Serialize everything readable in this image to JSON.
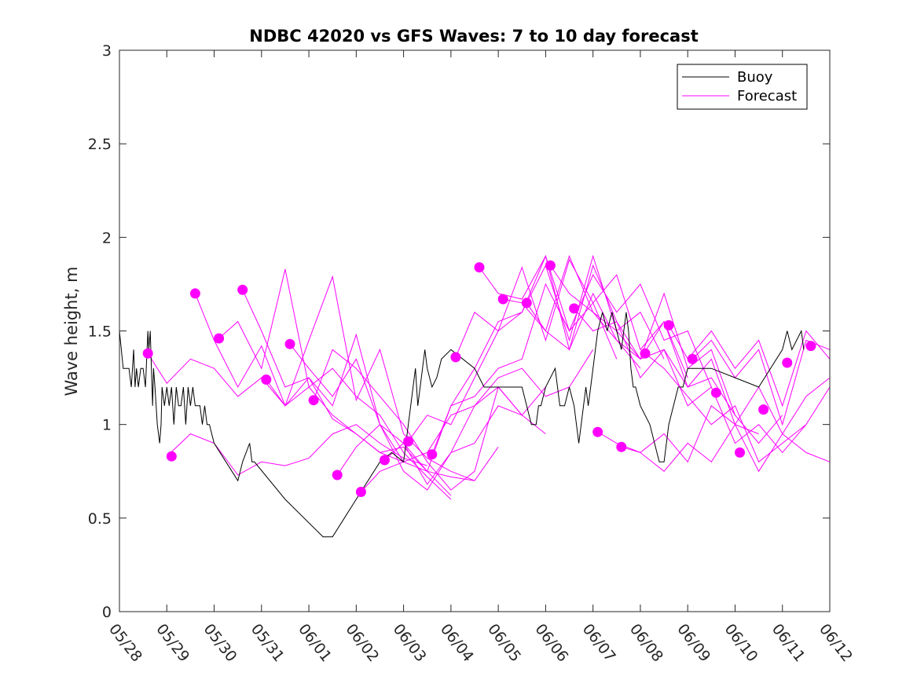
{
  "chart_data": {
    "type": "line",
    "title": "NDBC 42020 vs GFS Waves: 7 to 10 day forecast",
    "xlabel": "",
    "ylabel": "Wave height, m",
    "x_ticks": [
      "05/28",
      "05/29",
      "05/30",
      "05/31",
      "06/01",
      "06/02",
      "06/03",
      "06/04",
      "06/05",
      "06/06",
      "06/07",
      "06/08",
      "06/09",
      "06/10",
      "06/11",
      "06/12"
    ],
    "y_ticks": [
      "0",
      "0.5",
      "1",
      "1.5",
      "2",
      "2.5",
      "3"
    ],
    "xlim": [
      0,
      15
    ],
    "ylim": [
      0,
      3
    ],
    "grid": false,
    "legend_position": "top-right",
    "colors": {
      "buoy": "#000000",
      "forecast": "#ff00ff"
    },
    "buoy": {
      "name": "Buoy",
      "x": [
        0.0,
        0.08,
        0.2,
        0.25,
        0.3,
        0.33,
        0.36,
        0.4,
        0.45,
        0.5,
        0.55,
        0.6,
        0.62,
        0.65,
        0.7,
        0.72,
        0.75,
        0.8,
        0.85,
        0.88,
        0.9,
        0.95,
        1.0,
        1.05,
        1.1,
        1.15,
        1.2,
        1.25,
        1.3,
        1.35,
        1.4,
        1.45,
        1.5,
        1.55,
        1.6,
        1.65,
        1.7,
        1.75,
        1.8,
        1.85,
        1.9,
        2.0,
        2.5,
        2.6,
        2.75,
        2.8,
        2.85,
        3.5,
        4.3,
        4.5,
        5.0,
        5.5,
        5.75,
        6.0,
        6.25,
        6.3,
        6.4,
        6.45,
        6.5,
        6.6,
        6.7,
        6.75,
        6.8,
        7.0,
        7.5,
        7.7,
        8.0,
        8.5,
        8.7,
        8.8,
        8.85,
        8.9,
        9.0,
        9.2,
        9.3,
        9.4,
        9.5,
        9.6,
        9.65,
        9.7,
        9.75,
        9.8,
        9.85,
        9.9,
        9.95,
        10.0,
        10.05,
        10.1,
        10.2,
        10.3,
        10.4,
        10.5,
        10.6,
        10.7,
        10.75,
        10.8,
        10.85,
        10.9,
        11.0,
        11.2,
        11.3,
        11.4,
        11.5,
        11.6,
        11.7,
        11.8,
        11.9,
        12.0,
        12.5,
        13.0,
        13.5,
        14.0,
        14.1,
        14.2,
        14.3,
        14.4,
        14.45
      ],
      "y": [
        1.5,
        1.3,
        1.3,
        1.2,
        1.4,
        1.2,
        1.3,
        1.2,
        1.3,
        1.3,
        1.2,
        1.5,
        1.4,
        1.5,
        1.1,
        1.3,
        1.2,
        1.0,
        0.9,
        1.0,
        1.2,
        1.1,
        1.2,
        1.1,
        1.2,
        1.0,
        1.2,
        1.1,
        1.1,
        1.2,
        1.0,
        1.2,
        1.1,
        1.2,
        1.1,
        1.1,
        1.1,
        1.0,
        1.1,
        1.0,
        1.0,
        0.9,
        0.7,
        0.8,
        0.9,
        0.8,
        0.8,
        0.6,
        0.4,
        0.4,
        0.6,
        0.8,
        0.85,
        0.8,
        1.3,
        1.1,
        1.3,
        1.4,
        1.3,
        1.2,
        1.25,
        1.3,
        1.35,
        1.4,
        1.3,
        1.2,
        1.2,
        1.2,
        1.0,
        1.0,
        1.1,
        1.1,
        1.2,
        1.3,
        1.1,
        1.1,
        1.2,
        1.1,
        1.0,
        0.9,
        1.0,
        1.1,
        1.2,
        1.1,
        1.2,
        1.3,
        1.4,
        1.5,
        1.6,
        1.5,
        1.6,
        1.5,
        1.4,
        1.6,
        1.5,
        1.3,
        1.2,
        1.2,
        1.1,
        1.0,
        0.9,
        0.8,
        0.8,
        1.0,
        1.1,
        1.2,
        1.2,
        1.3,
        1.3,
        1.25,
        1.2,
        1.4,
        1.5,
        1.4,
        1.45,
        1.5,
        1.4
      ]
    },
    "forecast": {
      "name": "Forecast",
      "lines": [
        {
          "x": [
            0.6,
            1.0,
            1.5,
            2.0,
            2.5,
            3.0,
            3.5,
            4.0,
            4.5,
            5.0,
            5.5,
            6.0
          ],
          "y": [
            1.38,
            1.22,
            1.35,
            1.3,
            1.15,
            1.25,
            1.1,
            1.2,
            1.05,
            0.95,
            0.85,
            0.8
          ]
        },
        {
          "x": [
            1.0,
            1.5,
            2.0,
            2.5,
            3.0,
            3.5,
            4.0,
            4.5,
            5.0,
            5.5,
            6.0,
            6.5
          ],
          "y": [
            0.83,
            0.95,
            0.9,
            0.73,
            0.8,
            0.78,
            0.82,
            0.95,
            1.0,
            0.9,
            0.82,
            0.78
          ]
        },
        {
          "x": [
            1.6,
            2.0,
            2.5,
            3.0,
            3.5,
            4.0,
            4.5,
            5.0,
            5.5,
            6.0,
            6.5,
            7.0
          ],
          "y": [
            1.7,
            1.45,
            1.2,
            1.42,
            1.1,
            1.25,
            1.03,
            0.95,
            0.85,
            0.88,
            0.75,
            0.62
          ]
        },
        {
          "x": [
            2.1,
            2.5,
            3.0,
            3.5,
            4.0,
            4.5,
            5.0,
            5.5,
            6.0,
            6.5,
            7.0
          ],
          "y": [
            1.46,
            1.55,
            1.3,
            1.83,
            1.2,
            1.3,
            1.15,
            1.05,
            0.85,
            0.72,
            0.6
          ]
        },
        {
          "x": [
            2.6,
            3.0,
            3.5,
            4.0,
            4.5,
            5.0,
            5.5,
            6.0,
            6.5,
            7.0,
            7.5
          ],
          "y": [
            1.72,
            1.5,
            1.2,
            1.25,
            1.1,
            1.48,
            1.0,
            0.8,
            0.75,
            0.72,
            0.7
          ]
        },
        {
          "x": [
            3.1,
            3.5,
            4.0,
            4.5,
            5.0,
            5.5,
            6.0,
            6.5,
            7.0,
            7.5,
            8.0
          ],
          "y": [
            1.24,
            1.1,
            1.45,
            1.79,
            1.13,
            1.4,
            0.95,
            0.82,
            0.75,
            0.7,
            0.88
          ]
        },
        {
          "x": [
            3.6,
            4.0,
            4.5,
            5.0,
            5.5,
            6.0,
            6.5,
            7.0,
            7.5,
            8.0,
            8.5
          ],
          "y": [
            1.43,
            1.3,
            1.15,
            1.35,
            1.0,
            0.75,
            0.65,
            0.85,
            0.9,
            1.1,
            1.05
          ]
        },
        {
          "x": [
            4.1,
            4.5,
            5.0,
            5.5,
            6.0,
            6.5,
            7.0,
            7.5,
            8.0,
            8.5,
            9.0
          ],
          "y": [
            1.13,
            1.4,
            1.3,
            1.15,
            1.0,
            0.8,
            0.65,
            0.75,
            1.2,
            1.05,
            0.95
          ]
        },
        {
          "x": [
            4.6,
            5.0,
            5.5,
            6.0,
            6.5,
            7.0,
            7.5,
            8.0,
            8.5,
            9.0
          ],
          "y": [
            0.73,
            0.88,
            1.0,
            0.9,
            0.68,
            0.85,
            1.1,
            1.2,
            1.05,
            1.2
          ]
        },
        {
          "x": [
            5.1,
            5.5,
            6.0,
            6.5,
            7.0,
            7.5,
            8.0,
            8.5,
            9.0,
            9.5,
            10.0
          ],
          "y": [
            0.64,
            0.75,
            0.8,
            0.85,
            1.05,
            1.1,
            1.25,
            1.3,
            1.15,
            1.2,
            1.4
          ]
        },
        {
          "x": [
            5.6,
            6.0,
            6.5,
            7.0,
            7.5,
            8.0,
            8.5,
            9.0,
            9.5,
            10.0,
            10.5
          ],
          "y": [
            0.81,
            0.9,
            0.75,
            1.1,
            1.15,
            1.3,
            1.35,
            1.75,
            1.5,
            1.65,
            1.35
          ]
        },
        {
          "x": [
            6.1,
            6.5,
            7.0,
            7.5,
            8.0,
            8.5,
            9.0,
            9.5,
            10.0,
            10.5,
            11.0
          ],
          "y": [
            0.91,
            1.05,
            1.0,
            1.25,
            1.5,
            1.6,
            1.9,
            1.4,
            1.7,
            1.45,
            1.3
          ]
        },
        {
          "x": [
            6.6,
            7.0,
            7.5,
            8.0,
            8.5,
            9.0,
            9.5,
            10.0,
            10.5,
            11.0,
            11.5
          ],
          "y": [
            0.84,
            1.1,
            1.3,
            1.55,
            1.6,
            1.85,
            1.45,
            1.9,
            1.5,
            1.6,
            1.35
          ]
        },
        {
          "x": [
            7.1,
            7.5,
            8.0,
            8.5,
            9.0,
            9.5,
            10.0,
            10.5,
            11.0,
            11.5,
            12.0
          ],
          "y": [
            1.36,
            1.6,
            1.5,
            1.84,
            1.45,
            1.88,
            1.65,
            1.8,
            1.4,
            1.55,
            1.25
          ]
        },
        {
          "x": [
            7.6,
            8.0,
            8.5,
            9.0,
            9.5,
            10.0,
            10.5,
            11.0,
            11.5,
            12.0,
            12.5
          ],
          "y": [
            1.84,
            1.7,
            1.67,
            1.9,
            1.5,
            1.8,
            1.6,
            1.75,
            1.45,
            1.5,
            1.2
          ]
        },
        {
          "x": [
            8.1,
            8.5,
            9.0,
            9.5,
            10.0,
            10.5,
            11.0,
            11.5,
            12.0,
            12.5,
            13.0
          ],
          "y": [
            1.67,
            1.65,
            1.5,
            1.9,
            1.6,
            1.5,
            1.35,
            1.7,
            1.3,
            1.4,
            1.05
          ]
        },
        {
          "x": [
            8.6,
            9.0,
            9.5,
            10.0,
            10.5,
            11.0,
            11.5,
            12.0,
            12.5,
            13.0,
            13.5
          ],
          "y": [
            1.65,
            1.5,
            1.4,
            1.85,
            1.55,
            1.35,
            1.4,
            1.2,
            1.35,
            1.0,
            0.95
          ]
        },
        {
          "x": [
            9.1,
            9.5,
            10.0,
            10.5,
            11.0,
            11.5,
            12.0,
            12.5,
            13.0,
            13.5,
            14.0
          ],
          "y": [
            1.85,
            1.7,
            1.6,
            1.45,
            1.35,
            1.55,
            1.2,
            1.25,
            1.05,
            0.9,
            1.05
          ]
        },
        {
          "x": [
            9.6,
            10.0,
            10.5,
            11.0,
            11.5,
            12.0,
            12.5,
            13.0,
            13.5,
            14.0,
            14.5
          ],
          "y": [
            1.62,
            1.5,
            1.55,
            1.25,
            1.4,
            1.1,
            1.2,
            0.9,
            1.0,
            0.85,
            1.0
          ]
        },
        {
          "x": [
            10.1,
            10.5,
            11.0,
            11.5,
            12.0,
            12.5,
            13.0,
            13.5,
            14.0,
            14.5,
            15.0
          ],
          "y": [
            0.96,
            0.9,
            0.85,
            0.95,
            0.8,
            1.1,
            1.0,
            1.2,
            0.95,
            1.15,
            1.25
          ]
        },
        {
          "x": [
            10.6,
            11.0,
            11.5,
            12.0,
            12.5,
            13.0,
            13.5,
            14.0,
            14.5,
            15.0
          ],
          "y": [
            0.88,
            0.85,
            0.75,
            0.9,
            0.8,
            1.0,
            0.75,
            0.95,
            0.85,
            0.8
          ]
        },
        {
          "x": [
            11.1,
            11.5,
            12.0,
            12.5,
            13.0,
            13.5,
            14.0,
            14.5,
            15.0
          ],
          "y": [
            1.38,
            1.3,
            1.15,
            1.0,
            1.1,
            0.8,
            0.9,
            1.0,
            1.2
          ]
        },
        {
          "x": [
            11.6,
            12.0,
            12.5,
            13.0,
            13.5,
            14.0,
            14.5,
            15.0
          ],
          "y": [
            1.53,
            1.35,
            1.5,
            1.3,
            1.45,
            1.1,
            1.5,
            1.35
          ]
        },
        {
          "x": [
            12.1,
            12.5,
            13.0,
            13.5,
            14.0,
            14.5,
            15.0
          ],
          "y": [
            1.35,
            1.45,
            1.25,
            1.4,
            1.0,
            1.45,
            1.4
          ]
        }
      ],
      "markers": {
        "x": [
          0.6,
          1.1,
          1.6,
          2.1,
          2.6,
          3.1,
          3.6,
          4.1,
          4.6,
          5.1,
          5.6,
          6.1,
          6.6,
          7.1,
          7.6,
          8.1,
          8.6,
          9.1,
          9.6,
          10.1,
          10.6,
          11.1,
          11.6,
          12.1,
          12.6,
          13.1,
          13.6,
          14.1,
          14.6
        ],
        "y": [
          1.38,
          0.83,
          1.7,
          1.46,
          1.72,
          1.24,
          1.43,
          1.13,
          0.73,
          0.64,
          0.81,
          0.91,
          0.84,
          1.36,
          1.84,
          1.67,
          1.65,
          1.85,
          1.62,
          0.96,
          0.88,
          1.38,
          1.53,
          1.35,
          1.17,
          0.85,
          1.08,
          1.33,
          1.42
        ]
      }
    },
    "legend": [
      "Buoy",
      "Forecast"
    ]
  }
}
